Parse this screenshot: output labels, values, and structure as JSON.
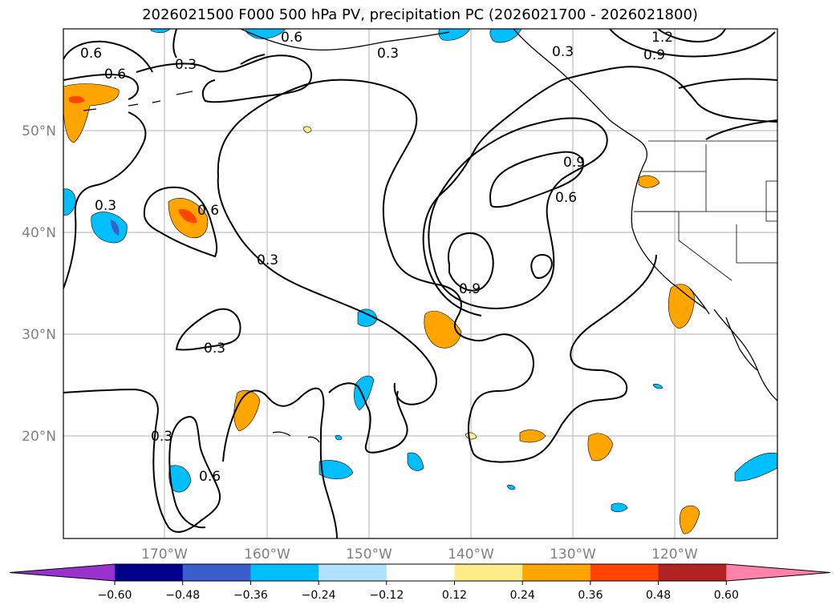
{
  "title": "2026021500 F000 500 hPa PV, precipitation PC (2026021700 - 2026021800)",
  "lat_labels": [
    "50°N",
    "40°N",
    "30°N",
    "20°N"
  ],
  "lon_labels": [
    "170°W",
    "160°W",
    "150°W",
    "140°W",
    "130°W",
    "120°W"
  ],
  "colorbar": {
    "ticks": [
      "−0.60",
      "−0.48",
      "−0.36",
      "−0.24",
      "−0.12",
      "0.12",
      "0.24",
      "0.36",
      "0.48",
      "0.60"
    ],
    "colors": [
      "#9932cc",
      "#00008b",
      "#3a5fcd",
      "#00bfff",
      "#b0e2ff",
      "#ffffff",
      "#ffec8b",
      "#ffa500",
      "#ff4500",
      "#b22222",
      "#ff82ab"
    ]
  },
  "contour_labels": [
    "0.6",
    "1.2",
    "0.9",
    "0.3",
    "0.3",
    "0.3",
    "0.6",
    "0.6",
    "0.3",
    "0.6",
    "0.9",
    "0.6",
    "0.3",
    "0.9",
    "0.3",
    "0.3",
    "0.6"
  ]
}
